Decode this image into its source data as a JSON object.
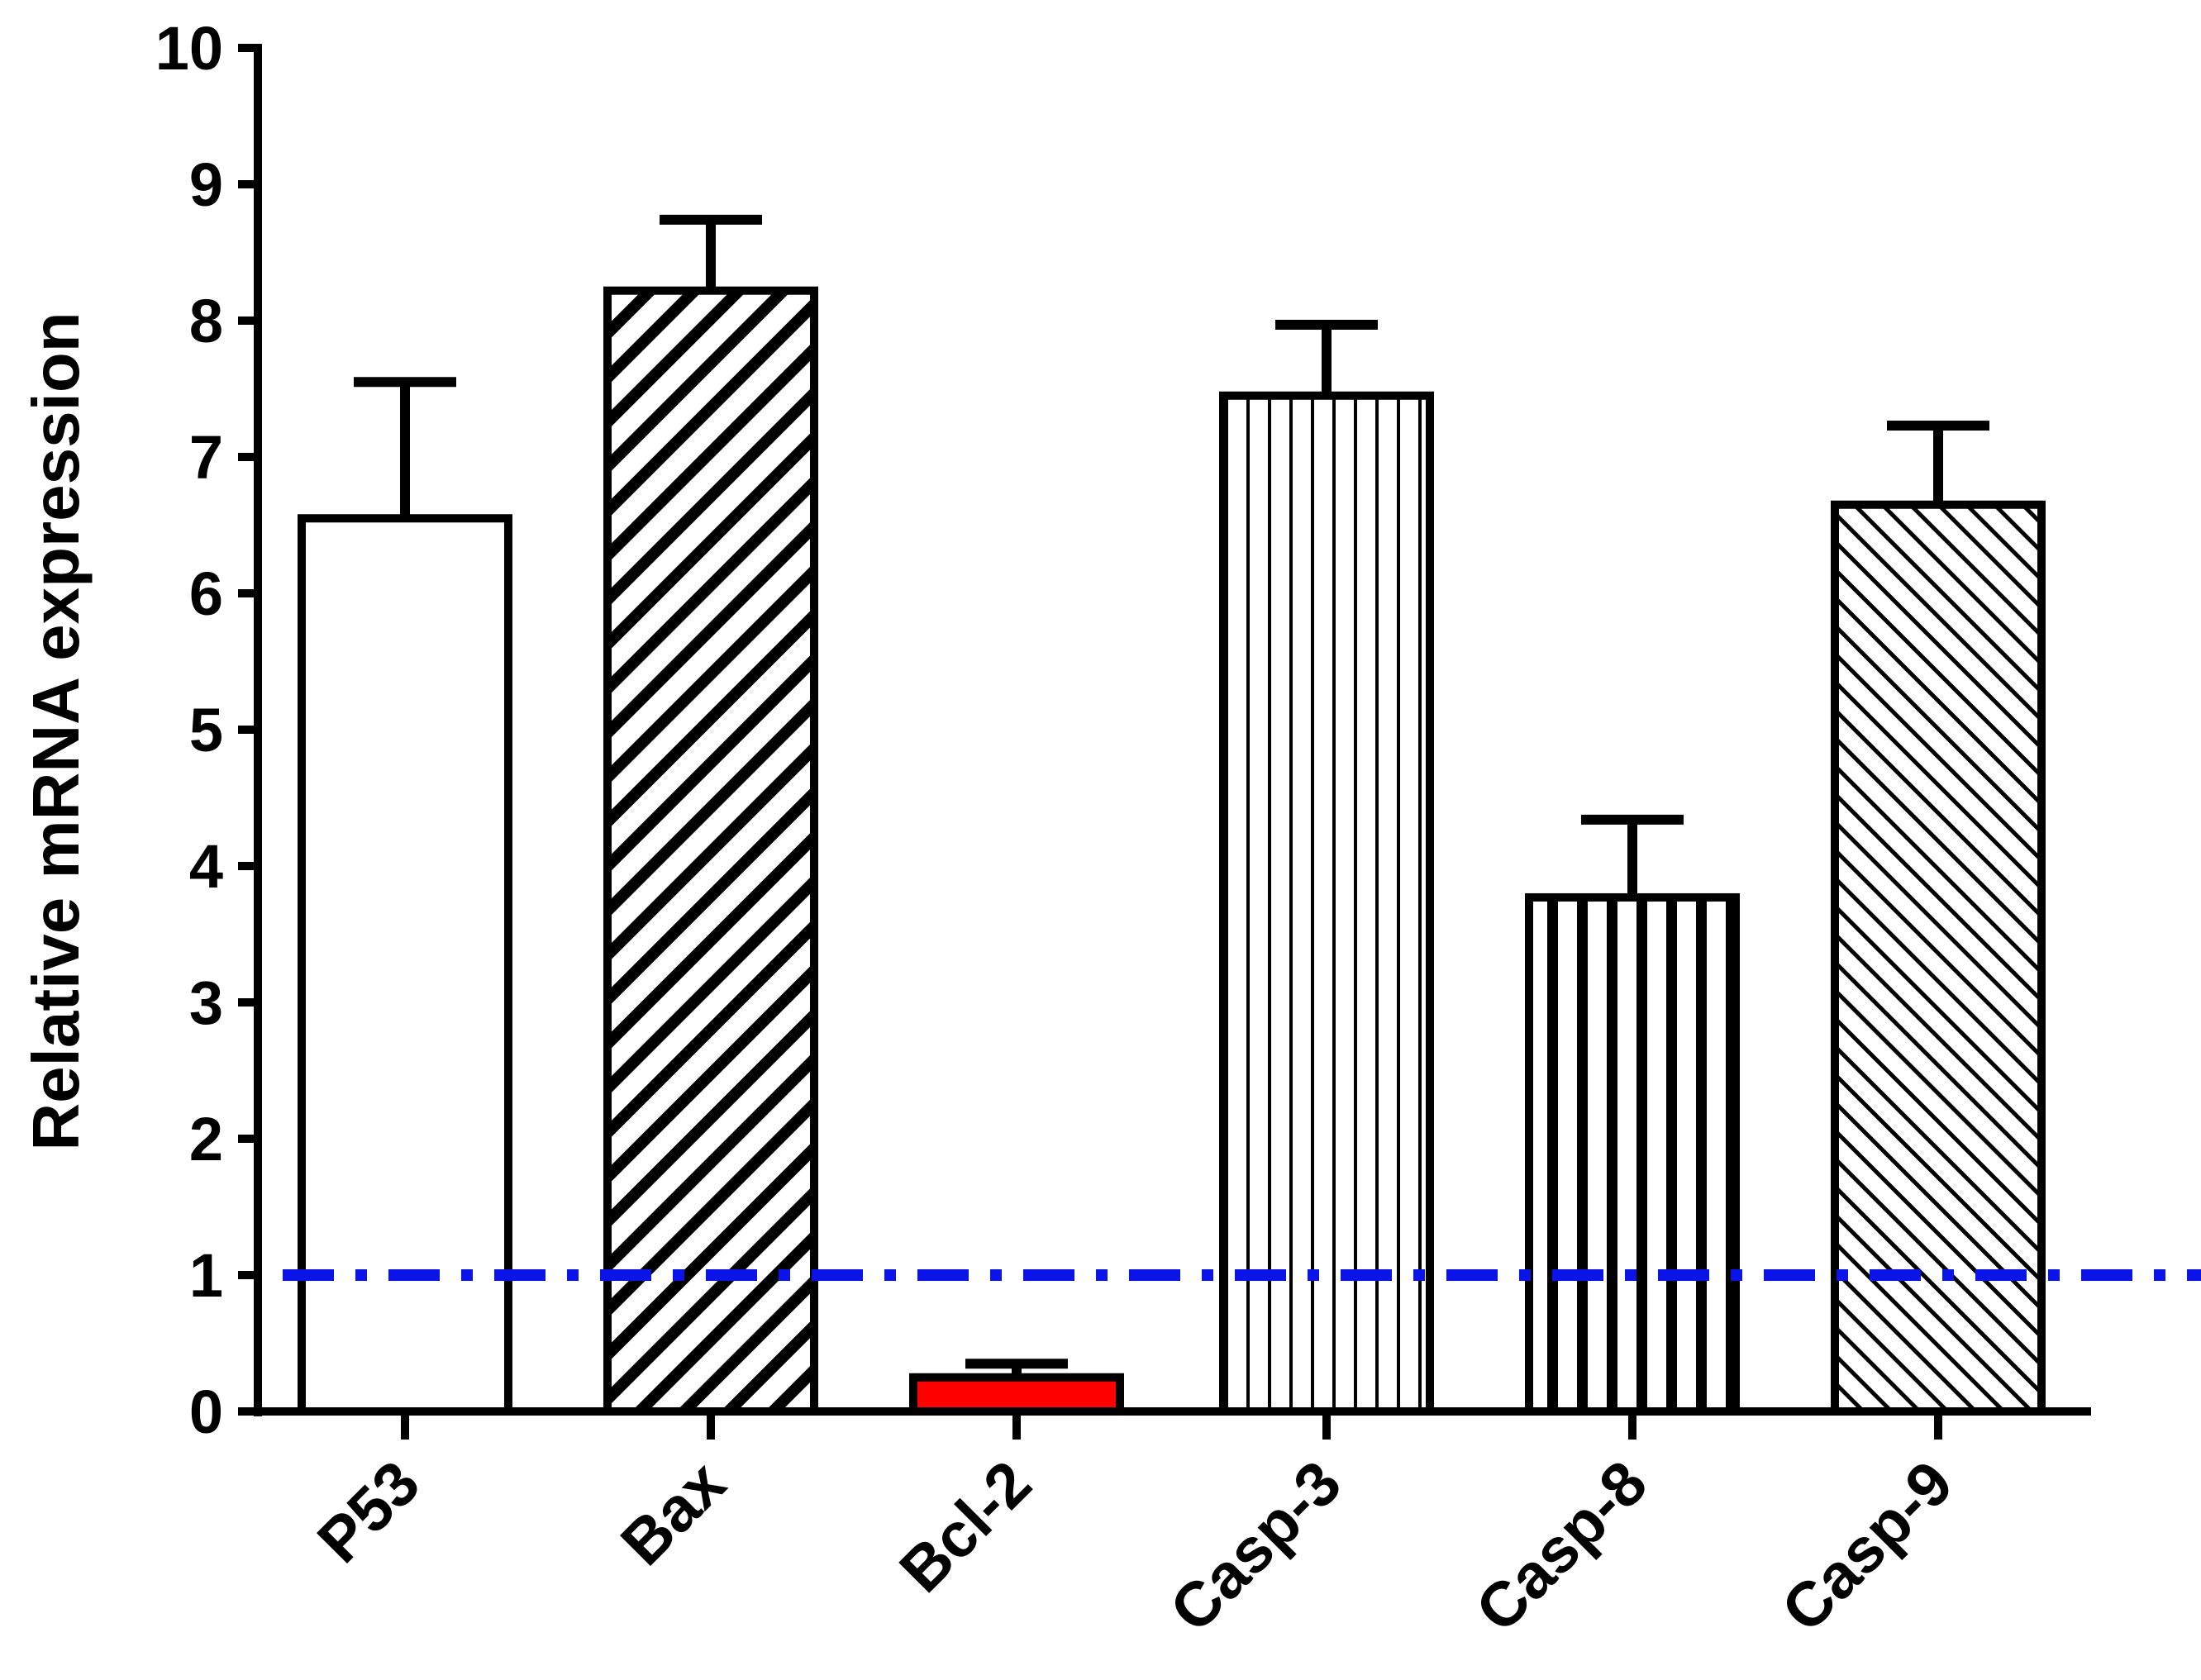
{
  "chart_data": {
    "type": "bar",
    "title": "",
    "xlabel": "",
    "ylabel": "Relative mRNA expression",
    "ylim": [
      0,
      10
    ],
    "yticks": [
      0,
      1,
      2,
      3,
      4,
      5,
      6,
      7,
      8,
      9,
      10
    ],
    "categories": [
      "P53",
      "Bax",
      "Bcl-2",
      "Casp-3",
      "Casp-8",
      "Casp-9"
    ],
    "values": [
      6.55,
      8.22,
      0.25,
      7.45,
      3.77,
      6.65
    ],
    "errors": [
      1.0,
      0.52,
      0.1,
      0.52,
      0.57,
      0.58
    ],
    "patterns": [
      "none",
      "backslash-thick",
      "solid-red",
      "vertical-thin",
      "vertical-thick",
      "slash-thin"
    ],
    "reference_line": {
      "value": 1,
      "style": "dash-dot",
      "color": "#0a14e6"
    },
    "colors": {
      "bar_outline": "#000000",
      "bar_fill": "#ffffff",
      "bcl2_fill": "#ff0000",
      "reference": "#0a14e6"
    }
  }
}
